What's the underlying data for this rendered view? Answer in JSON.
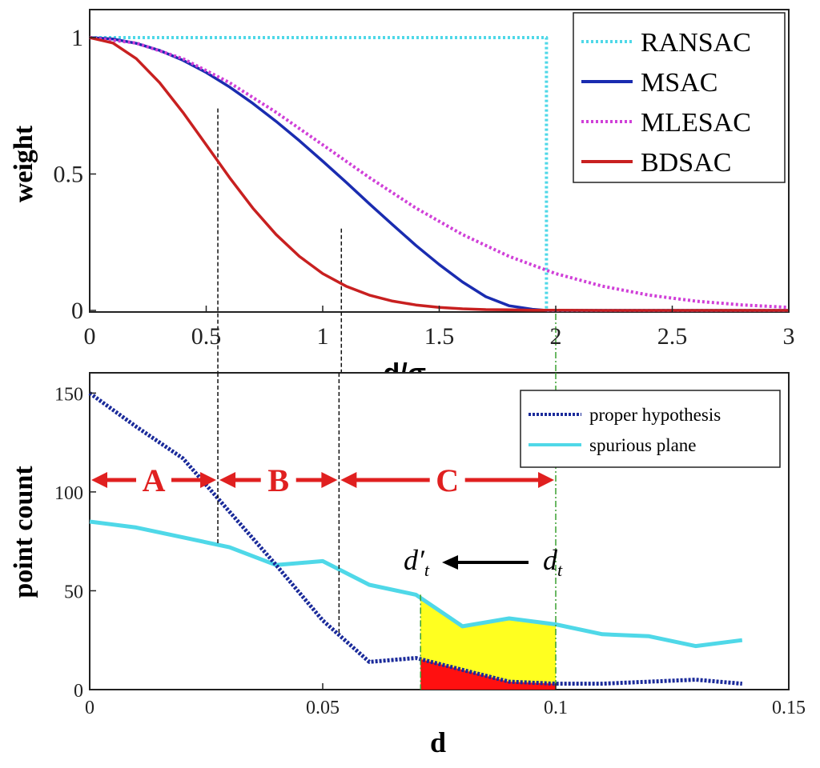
{
  "colors": {
    "ransac": "#4fd8e8",
    "msac": "#1a2cb0",
    "mlesac": "#d040d8",
    "bdsac": "#c82020",
    "proper": "#1a2a9a",
    "spurious": "#4fd8e8",
    "fill_yellow": "#ffff20",
    "fill_red": "#ff1010",
    "region_arrow": "#e02020",
    "marker_green": "#3aa030"
  },
  "chart_data": [
    {
      "type": "line",
      "xlabel_main": "d/σ",
      "xlabel_sub": "d",
      "ylabel": "weight",
      "xlim": [
        0,
        3
      ],
      "ylim": [
        0,
        1
      ],
      "xticks": [
        {
          "v": 0,
          "label": "0"
        },
        {
          "v": 0.5,
          "label": "0.5"
        },
        {
          "v": 1,
          "label": "1"
        },
        {
          "v": 1.5,
          "label": "1.5"
        },
        {
          "v": 2,
          "label": "2"
        },
        {
          "v": 2.5,
          "label": "2.5"
        },
        {
          "v": 3,
          "label": "3"
        }
      ],
      "yticks": [
        {
          "v": 0,
          "label": "0"
        },
        {
          "v": 0.5,
          "label": "0.5"
        },
        {
          "v": 1,
          "label": "1"
        }
      ],
      "series": [
        {
          "name": "RANSAC",
          "style": "dotted",
          "color_key": "ransac",
          "x": [
            0,
            1.96,
            1.96,
            1.97,
            3
          ],
          "y": [
            1,
            1,
            0,
            0,
            0
          ]
        },
        {
          "name": "MSAC",
          "style": "solid",
          "color_key": "msac",
          "x": [
            0,
            0.1,
            0.2,
            0.3,
            0.4,
            0.5,
            0.6,
            0.7,
            0.8,
            0.9,
            1.0,
            1.1,
            1.2,
            1.3,
            1.4,
            1.5,
            1.6,
            1.7,
            1.8,
            1.9,
            1.96,
            2.0,
            2.5,
            3.0
          ],
          "y": [
            1,
            0.995,
            0.979,
            0.953,
            0.917,
            0.872,
            0.819,
            0.759,
            0.693,
            0.622,
            0.547,
            0.47,
            0.391,
            0.314,
            0.238,
            0.168,
            0.104,
            0.05,
            0.017,
            0.004,
            0,
            0,
            0,
            0
          ]
        },
        {
          "name": "MLESAC",
          "style": "dotted",
          "color_key": "mlesac",
          "x": [
            0,
            0.2,
            0.4,
            0.6,
            0.8,
            1.0,
            1.2,
            1.4,
            1.6,
            1.8,
            2.0,
            2.2,
            2.4,
            2.6,
            2.8,
            3.0
          ],
          "y": [
            1,
            0.98,
            0.923,
            0.835,
            0.726,
            0.607,
            0.487,
            0.375,
            0.278,
            0.198,
            0.135,
            0.089,
            0.056,
            0.034,
            0.02,
            0.011
          ]
        },
        {
          "name": "BDSAC",
          "style": "solid",
          "color_key": "bdsac",
          "x": [
            0,
            0.1,
            0.2,
            0.3,
            0.4,
            0.5,
            0.6,
            0.7,
            0.8,
            0.9,
            1.0,
            1.1,
            1.2,
            1.3,
            1.4,
            1.5,
            1.6,
            1.7,
            1.8,
            1.9,
            2.0,
            2.2,
            2.4,
            2.6,
            2.8,
            3.0
          ],
          "y": [
            1,
            0.98,
            0.923,
            0.835,
            0.726,
            0.607,
            0.487,
            0.375,
            0.278,
            0.198,
            0.135,
            0.089,
            0.056,
            0.034,
            0.02,
            0.011,
            0.006,
            0.003,
            0.002,
            0.001,
            0.0005,
            0,
            0,
            0,
            0,
            0
          ]
        }
      ],
      "guides": [
        {
          "x": 0.55,
          "y": 0.74,
          "style": "dashed-black"
        },
        {
          "x": 1.08,
          "y": 0.3,
          "style": "dashed-black"
        },
        {
          "x": 2.0,
          "y": 0,
          "style": "dashed-green"
        }
      ],
      "legend": {
        "placement": "top-right",
        "entries": [
          "RANSAC",
          "MSAC",
          "MLESAC",
          "BDSAC"
        ]
      }
    },
    {
      "type": "line",
      "xlabel": "d",
      "ylabel": "point count",
      "xlim": [
        0,
        0.15
      ],
      "ylim": [
        0,
        155
      ],
      "xticks": [
        {
          "v": 0,
          "label": "0"
        },
        {
          "v": 0.05,
          "label": "0.05"
        },
        {
          "v": 0.1,
          "label": "0.1"
        },
        {
          "v": 0.15,
          "label": "0.15"
        }
      ],
      "yticks": [
        {
          "v": 0,
          "label": "0"
        },
        {
          "v": 50,
          "label": "50"
        },
        {
          "v": 100,
          "label": "100"
        },
        {
          "v": 150,
          "label": "150"
        }
      ],
      "series": [
        {
          "name": "proper hypothesis",
          "style": "dotted",
          "color_key": "proper",
          "x": [
            0,
            0.01,
            0.02,
            0.03,
            0.04,
            0.05,
            0.06,
            0.07,
            0.08,
            0.09,
            0.1,
            0.11,
            0.12,
            0.13,
            0.14
          ],
          "y": [
            150,
            133,
            117,
            90,
            63,
            35,
            14,
            16,
            10,
            4,
            3,
            3,
            4,
            5,
            3
          ]
        },
        {
          "name": "spurious plane",
          "style": "solid",
          "color_key": "spurious",
          "x": [
            0,
            0.01,
            0.02,
            0.03,
            0.04,
            0.05,
            0.06,
            0.07,
            0.08,
            0.09,
            0.1,
            0.11,
            0.12,
            0.13,
            0.14
          ],
          "y": [
            85,
            82,
            77,
            72,
            63,
            65,
            53,
            48,
            32,
            36,
            33,
            28,
            27,
            22,
            25
          ]
        }
      ],
      "guides": [
        {
          "x": 0.0275,
          "y": 73,
          "style": "dashed-black"
        },
        {
          "x": 0.0535,
          "y": 28,
          "style": "dashed-black"
        },
        {
          "x": 0.071,
          "y": 48,
          "style": "dashed-green"
        },
        {
          "x": 0.1,
          "y": 155,
          "style": "dashed-green"
        }
      ],
      "regions": [
        {
          "label": "A",
          "x0": 0,
          "x1": 0.0275
        },
        {
          "label": "B",
          "x0": 0.0275,
          "x1": 0.0535
        },
        {
          "label": "C",
          "x0": 0.0535,
          "x1": 0.1
        }
      ],
      "threshold_labels": {
        "d_t_prime": "d′",
        "d_t": "d",
        "subscript": "t"
      },
      "shaded": {
        "x0": 0.071,
        "x1": 0.1,
        "yellow_between": "spurious plane and proper hypothesis",
        "red_below": "proper hypothesis"
      },
      "legend": {
        "placement": "top-right",
        "entries": [
          "proper hypothesis",
          "spurious plane"
        ]
      }
    }
  ]
}
